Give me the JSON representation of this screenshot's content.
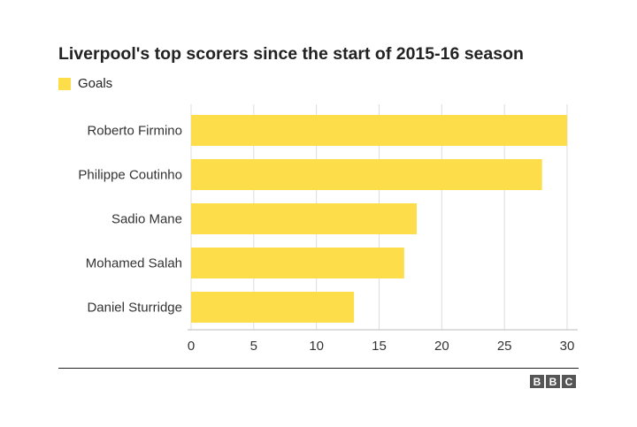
{
  "chart_data": {
    "type": "bar",
    "orientation": "horizontal",
    "title": "Liverpool's top scorers since the start of 2015-16 season",
    "categories": [
      "Roberto Firmino",
      "Philippe Coutinho",
      "Sadio Mane",
      "Mohamed Salah",
      "Daniel Sturridge"
    ],
    "series": [
      {
        "name": "Goals",
        "values": [
          30,
          28,
          18,
          17,
          13
        ]
      }
    ],
    "xlim": [
      0,
      30
    ],
    "xticks": [
      0,
      5,
      10,
      15,
      20,
      25,
      30
    ],
    "grid": true,
    "legend": "top-left",
    "bar_color": "#fdde4a",
    "grid_color": "#dddddd"
  },
  "logo": {
    "letters": [
      "B",
      "B",
      "C"
    ]
  }
}
